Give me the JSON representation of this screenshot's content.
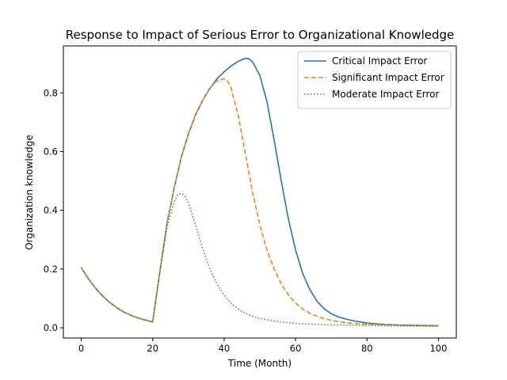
{
  "chart_data": {
    "type": "line",
    "title": "Response to Impact of Serious Error to Organizational Knowledge",
    "xlabel": "Time (Month)",
    "ylabel": "Organization knowledge",
    "xlim": [
      -5,
      105
    ],
    "ylim": [
      -0.035,
      0.96
    ],
    "xticks": [
      0,
      20,
      40,
      60,
      80,
      100
    ],
    "yticks": [
      0.0,
      0.2,
      0.4,
      0.6,
      0.8
    ],
    "xtick_labels": [
      "0",
      "20",
      "40",
      "60",
      "80",
      "100"
    ],
    "ytick_labels": [
      "0.0",
      "0.2",
      "0.4",
      "0.6",
      "0.8"
    ],
    "grid": false,
    "legend_position": "upper-right",
    "series": [
      {
        "name": "Critical Impact Error",
        "color": "#1f77b4",
        "style": "solid",
        "x": [
          0,
          2,
          4,
          6,
          8,
          10,
          12,
          14,
          16,
          18,
          20,
          22,
          24,
          26,
          28,
          30,
          32,
          34,
          36,
          38,
          40,
          42,
          44,
          46,
          47,
          48,
          50,
          52,
          54,
          56,
          58,
          60,
          62,
          64,
          66,
          68,
          70,
          72,
          74,
          76,
          78,
          80,
          85,
          90,
          95,
          100
        ],
        "y": [
          0.205,
          0.167,
          0.135,
          0.108,
          0.086,
          0.068,
          0.053,
          0.042,
          0.033,
          0.026,
          0.02,
          0.19,
          0.355,
          0.475,
          0.58,
          0.66,
          0.725,
          0.775,
          0.815,
          0.848,
          0.872,
          0.892,
          0.908,
          0.918,
          0.916,
          0.905,
          0.86,
          0.77,
          0.64,
          0.5,
          0.37,
          0.265,
          0.185,
          0.13,
          0.09,
          0.065,
          0.048,
          0.037,
          0.03,
          0.024,
          0.02,
          0.016,
          0.011,
          0.009,
          0.008,
          0.007
        ]
      },
      {
        "name": "Significant Impact Error",
        "color": "#ff7f0e",
        "style": "dashed",
        "x": [
          0,
          2,
          4,
          6,
          8,
          10,
          12,
          14,
          16,
          18,
          20,
          22,
          24,
          26,
          28,
          30,
          32,
          34,
          36,
          38,
          40,
          41,
          42,
          44,
          46,
          48,
          50,
          52,
          54,
          56,
          58,
          60,
          62,
          64,
          66,
          68,
          70,
          72,
          74,
          76,
          78,
          80,
          85,
          90,
          95,
          100
        ],
        "y": [
          0.205,
          0.167,
          0.135,
          0.108,
          0.086,
          0.068,
          0.053,
          0.042,
          0.033,
          0.026,
          0.02,
          0.19,
          0.355,
          0.475,
          0.58,
          0.66,
          0.725,
          0.775,
          0.815,
          0.842,
          0.848,
          0.84,
          0.815,
          0.72,
          0.59,
          0.46,
          0.35,
          0.265,
          0.2,
          0.15,
          0.112,
          0.084,
          0.064,
          0.049,
          0.039,
          0.031,
          0.025,
          0.021,
          0.018,
          0.015,
          0.013,
          0.012,
          0.01,
          0.008,
          0.007,
          0.006
        ]
      },
      {
        "name": "Moderate Impact Error",
        "color": "#2ca02c",
        "style": "dotted",
        "x": [
          0,
          2,
          4,
          6,
          8,
          10,
          12,
          14,
          16,
          18,
          20,
          22,
          24,
          26,
          27,
          28,
          29,
          30,
          32,
          34,
          36,
          38,
          40,
          42,
          44,
          46,
          48,
          50,
          55,
          60,
          65,
          70,
          75,
          80,
          85,
          90,
          95,
          100
        ],
        "y": [
          0.205,
          0.167,
          0.135,
          0.108,
          0.086,
          0.068,
          0.053,
          0.042,
          0.033,
          0.026,
          0.02,
          0.19,
          0.34,
          0.43,
          0.452,
          0.458,
          0.45,
          0.425,
          0.35,
          0.27,
          0.2,
          0.15,
          0.11,
          0.083,
          0.063,
          0.049,
          0.039,
          0.032,
          0.021,
          0.015,
          0.012,
          0.01,
          0.009,
          0.008,
          0.007,
          0.006,
          0.006,
          0.005
        ]
      }
    ]
  }
}
